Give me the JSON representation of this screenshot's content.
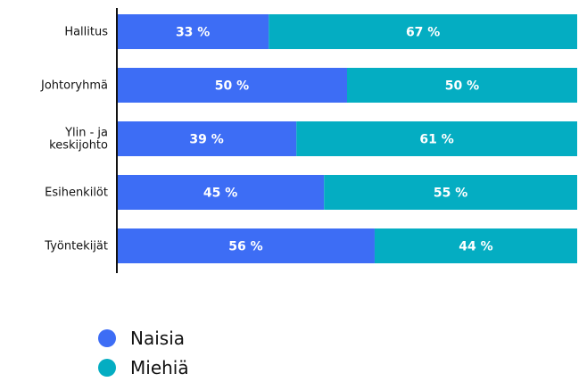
{
  "chart_data": {
    "type": "bar",
    "orientation": "horizontal",
    "stacked": true,
    "normalized": true,
    "categories": [
      "Hallitus",
      "Johtoryhmä",
      "Ylin - ja keskijohto",
      "Esihenkilöt",
      "Työntekijät"
    ],
    "category_lines": [
      [
        "Hallitus"
      ],
      [
        "Johtoryhmä"
      ],
      [
        "Ylin - ja",
        "keskijohto"
      ],
      [
        "Esihenkilöt"
      ],
      [
        "Työntekijät"
      ]
    ],
    "series": [
      {
        "name": "Naisia",
        "values": [
          33,
          50,
          39,
          45,
          56
        ],
        "labels": [
          "33 %",
          "50 %",
          "39 %",
          "45 %",
          "56 %"
        ],
        "color": "#3d6df5"
      },
      {
        "name": "Miehiä",
        "values": [
          67,
          50,
          61,
          55,
          44
        ],
        "labels": [
          "67 %",
          "50 %",
          "61 %",
          "55 %",
          "44 %"
        ],
        "color": "#04adc2"
      }
    ],
    "xlim": [
      0,
      100
    ],
    "grid": false,
    "legend_position": "bottom-left"
  },
  "legend": {
    "items": [
      {
        "label": "Naisia",
        "color": "#3d6df5"
      },
      {
        "label": "Miehiä",
        "color": "#04adc2"
      }
    ]
  }
}
